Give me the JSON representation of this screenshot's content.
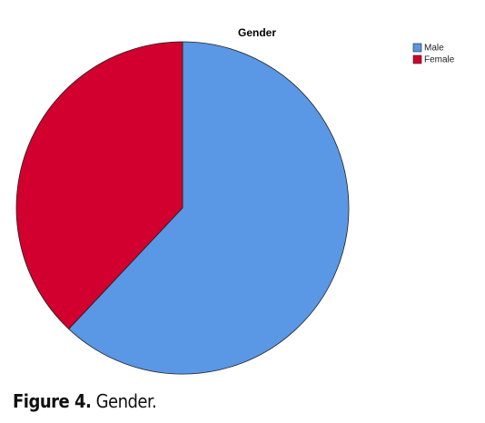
{
  "chart_data": {
    "type": "pie",
    "title": "Gender",
    "categories": [
      "Male",
      "Female"
    ],
    "values": [
      62,
      38
    ],
    "colors": [
      "#5a97e4",
      "#d1002e"
    ],
    "legend": "top-right"
  },
  "caption": {
    "label": "Figure 4.",
    "text": "Gender."
  }
}
